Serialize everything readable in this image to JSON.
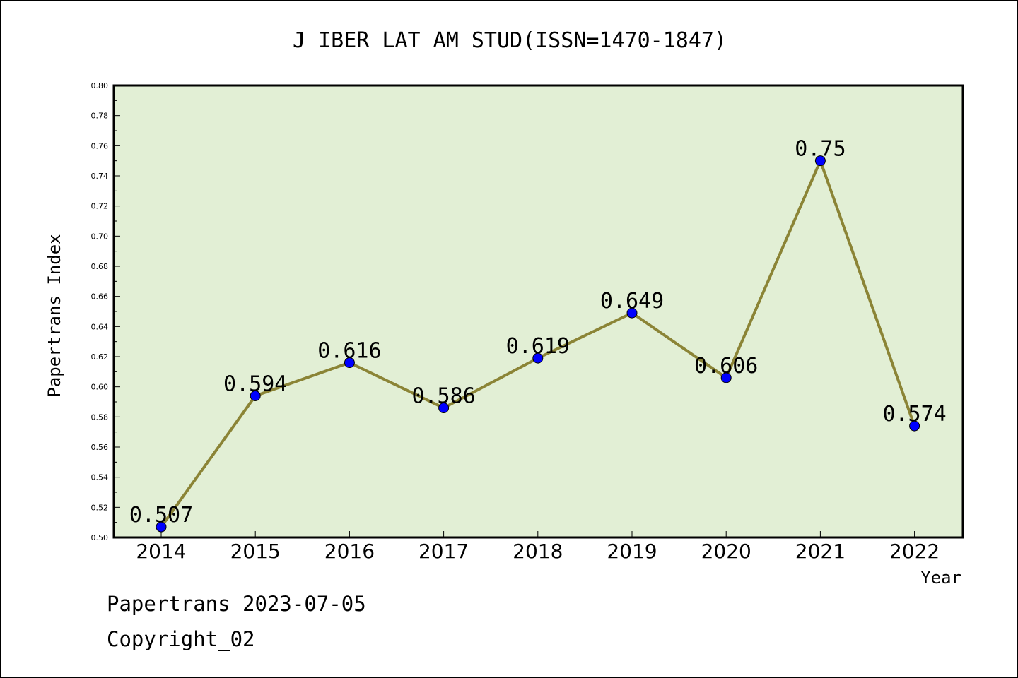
{
  "footer": {
    "line1": "Papertrans 2023-07-05",
    "line2": "Copyright_02"
  },
  "colors": {
    "plot_background": "#e2efd5",
    "line": "#8b8436",
    "marker": "#0000ff"
  },
  "chart_data": {
    "type": "line",
    "title": "J IBER LAT AM STUD(ISSN=1470-1847)",
    "xlabel": "Year",
    "ylabel": "Papertrans Index",
    "categories": [
      "2014",
      "2015",
      "2016",
      "2017",
      "2018",
      "2019",
      "2020",
      "2021",
      "2022"
    ],
    "series": [
      {
        "values": [
          0.507,
          0.594,
          0.616,
          0.586,
          0.619,
          0.649,
          0.606,
          0.75,
          0.574
        ],
        "labels": [
          "0.507",
          "0.594",
          "0.616",
          "0.586",
          "0.619",
          "0.649",
          "0.606",
          "0.75",
          "0.574"
        ]
      }
    ],
    "ylim": [
      0.5,
      0.8
    ],
    "yticks": [
      "0.50",
      "0.52",
      "0.54",
      "0.56",
      "0.58",
      "0.60",
      "0.62",
      "0.64",
      "0.66",
      "0.68",
      "0.70",
      "0.72",
      "0.74",
      "0.76",
      "0.78",
      "0.80"
    ],
    "grid": false,
    "legend": "none"
  }
}
